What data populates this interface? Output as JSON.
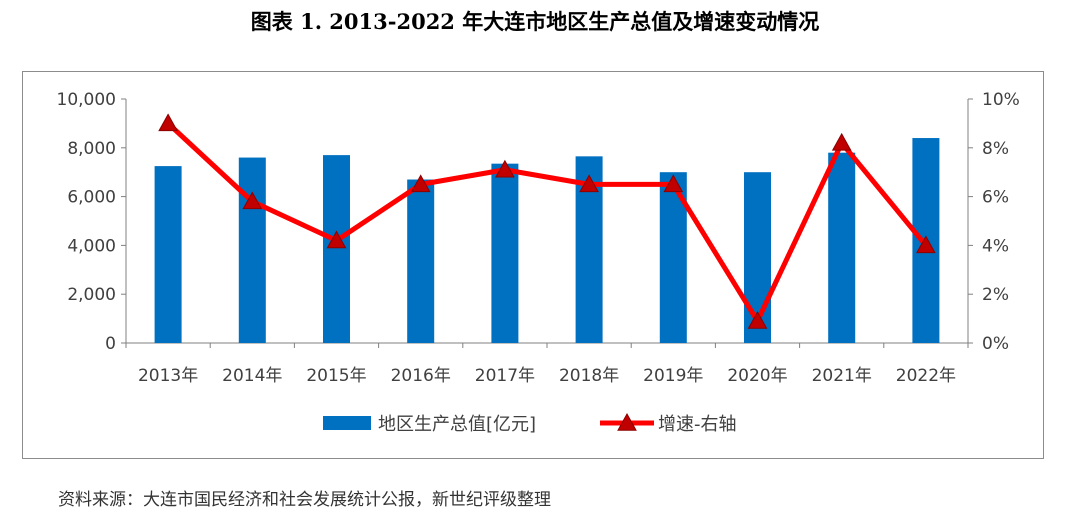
{
  "title": "图表 1.   2013-2022 年大连市地区生产总值及增速变动情况",
  "source": "资料来源：大连市国民经济和社会发展统计公报，新世纪评级整理",
  "colors": {
    "bar": "#0070C0",
    "line": "#FF0000",
    "marker": "#C00000"
  },
  "chart_data": {
    "type": "bar",
    "categories": [
      "2013年",
      "2014年",
      "2015年",
      "2016年",
      "2017年",
      "2018年",
      "2019年",
      "2020年",
      "2021年",
      "2022年"
    ],
    "series": [
      {
        "name": "地区生产总值[亿元]",
        "type": "bar",
        "axis": "left",
        "values": [
          7250,
          7600,
          7700,
          6700,
          7350,
          7650,
          7000,
          7000,
          7800,
          8400
        ]
      },
      {
        "name": "增速-右轴",
        "type": "line",
        "axis": "right",
        "values": [
          9.0,
          5.8,
          4.2,
          6.5,
          7.1,
          6.5,
          6.5,
          0.9,
          8.2,
          4.0
        ]
      }
    ],
    "ylim_left": [
      0,
      10000
    ],
    "ylim_right": [
      0,
      10
    ],
    "yticks_left": [
      "0",
      "2,000",
      "4,000",
      "6,000",
      "8,000",
      "10,000"
    ],
    "yticks_right": [
      "0%",
      "2%",
      "4%",
      "6%",
      "8%",
      "10%"
    ],
    "legend_position": "bottom"
  }
}
